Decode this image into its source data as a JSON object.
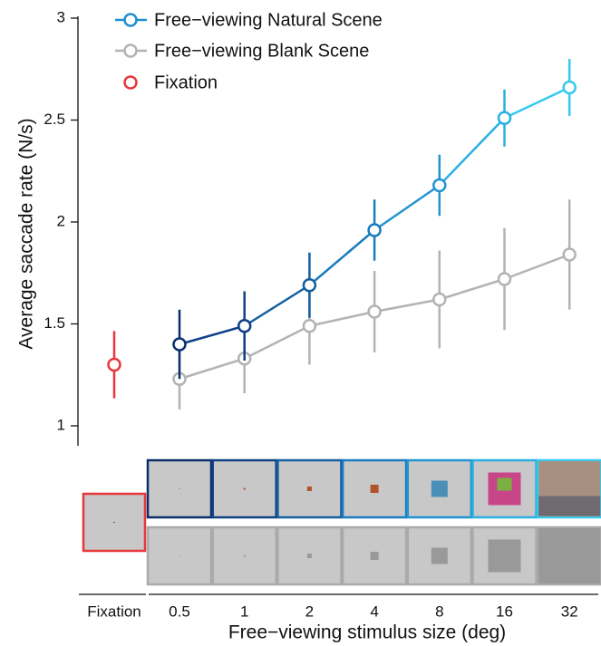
{
  "chart_data": {
    "type": "line",
    "y_label": "Average saccade rate (N/s)",
    "x_label": "Free−viewing stimulus size (deg)",
    "categories": [
      "0.5",
      "1",
      "2",
      "4",
      "8",
      "16",
      "32"
    ],
    "series": [
      {
        "name": "Free−viewing Natural Scene",
        "color": "#1f8fd0",
        "point_colors": [
          "#0b2f6b",
          "#0f4187",
          "#145fa0",
          "#1a7cbf",
          "#2294d2",
          "#2bb0e2",
          "#35c9f0"
        ],
        "values": [
          1.4,
          1.49,
          1.69,
          1.96,
          2.18,
          2.51,
          2.66
        ],
        "errors": [
          0.17,
          0.17,
          0.16,
          0.15,
          0.15,
          0.14,
          0.14
        ]
      },
      {
        "name": "Free−viewing Blank Scene",
        "color": "#b3b3b3",
        "values": [
          1.23,
          1.33,
          1.49,
          1.56,
          1.62,
          1.72,
          1.84
        ],
        "errors": [
          0.15,
          0.17,
          0.19,
          0.2,
          0.24,
          0.25,
          0.27
        ]
      }
    ],
    "fixation": {
      "name": "Fixation",
      "color": "#e8373a",
      "value": 1.3,
      "error": 0.165
    },
    "ylim": [
      1,
      3
    ],
    "yticks": [
      1,
      1.5,
      2,
      2.5,
      3
    ]
  }
}
